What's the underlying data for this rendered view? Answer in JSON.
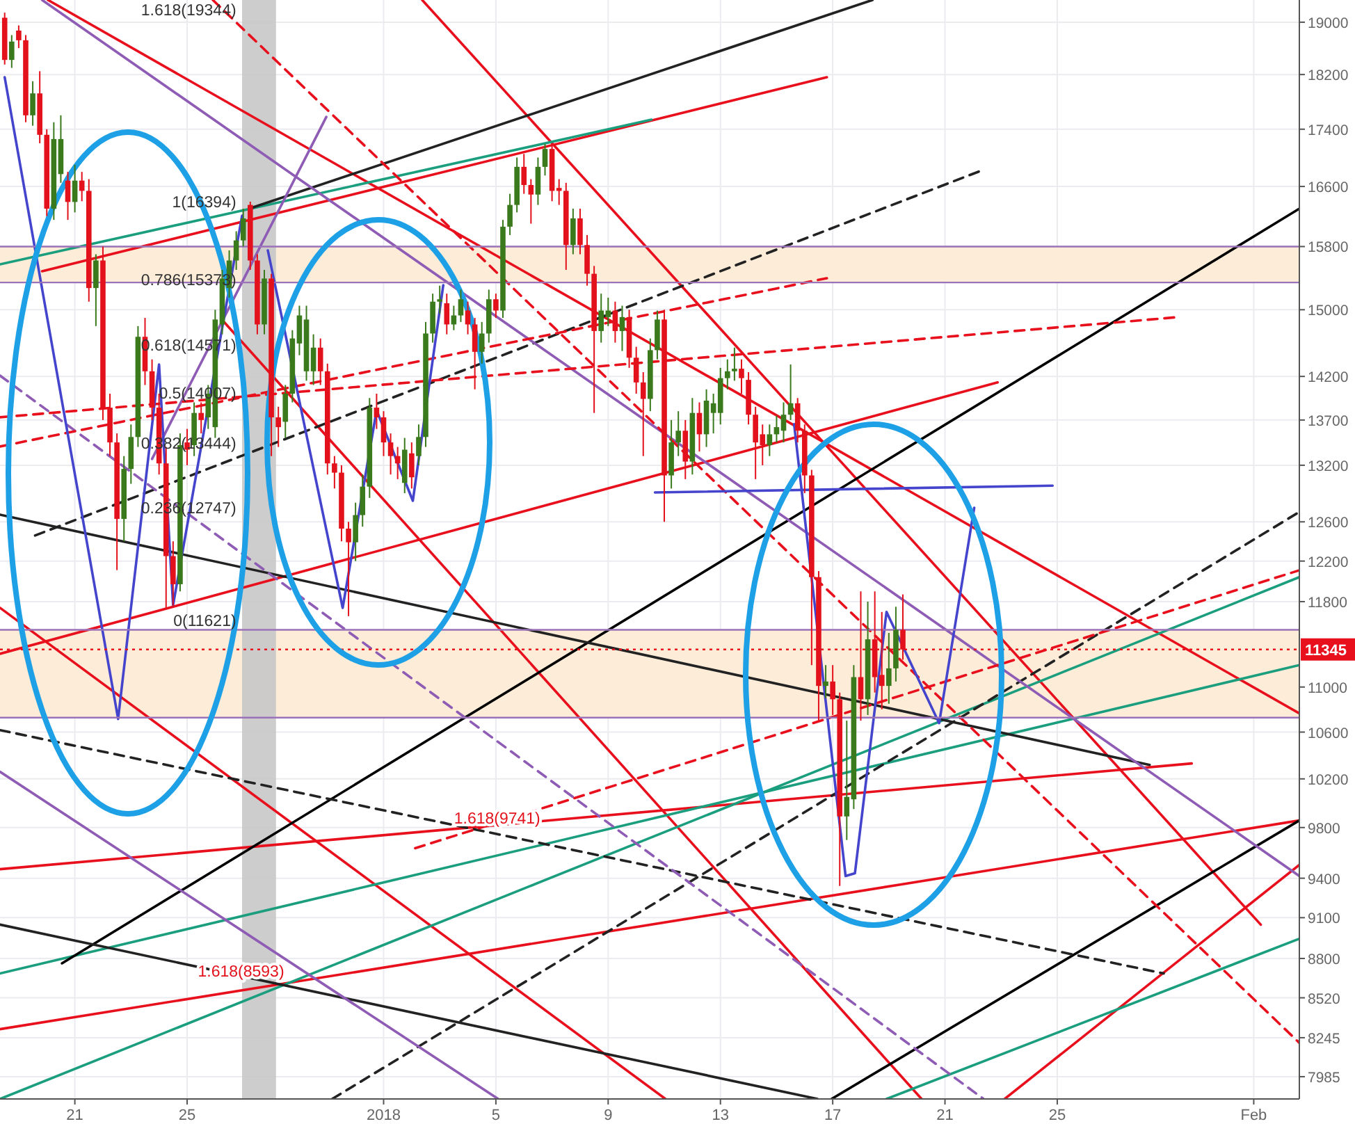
{
  "chart_data": {
    "type": "candlestick",
    "log": true,
    "grid": true,
    "xlim": [
      "2017-12-18T08:00",
      "2018-02-02T15:00"
    ],
    "xticks": [
      {
        "value": "2017-12-21",
        "label": "21"
      },
      {
        "value": "2017-12-25",
        "label": "25"
      },
      {
        "value": "2018-01-01",
        "label": "2018"
      },
      {
        "value": "2018-01-05",
        "label": "5"
      },
      {
        "value": "2018-01-09",
        "label": "9"
      },
      {
        "value": "2018-01-13",
        "label": "13"
      },
      {
        "value": "2018-01-17",
        "label": "17"
      },
      {
        "value": "2018-01-21",
        "label": "21"
      },
      {
        "value": "2018-01-25",
        "label": "25"
      },
      {
        "value": "2018-02-01",
        "label": "Feb"
      }
    ],
    "ylim": [
      7840,
      19350
    ],
    "yticks": [
      7985,
      8245,
      8520,
      8800,
      9100,
      9400,
      9800,
      10200,
      10600,
      11000,
      11800,
      12200,
      12600,
      13200,
      13700,
      14200,
      15000,
      15800,
      16600,
      17400,
      18200,
      19000
    ],
    "x": [
      "2017-12-18T12:00",
      "2017-12-18T18:00",
      "2017-12-19T00:00",
      "2017-12-19T06:00",
      "2017-12-19T12:00",
      "2017-12-19T18:00",
      "2017-12-20T00:00",
      "2017-12-20T06:00",
      "2017-12-20T12:00",
      "2017-12-20T18:00",
      "2017-12-21T00:00",
      "2017-12-21T06:00",
      "2017-12-21T12:00",
      "2017-12-21T18:00",
      "2017-12-22T00:00",
      "2017-12-22T06:00",
      "2017-12-22T12:00",
      "2017-12-22T18:00",
      "2017-12-23T00:00",
      "2017-12-23T06:00",
      "2017-12-23T12:00",
      "2017-12-23T18:00",
      "2017-12-24T00:00",
      "2017-12-24T06:00",
      "2017-12-24T12:00",
      "2017-12-24T18:00",
      "2017-12-25T00:00",
      "2017-12-25T06:00",
      "2017-12-25T12:00",
      "2017-12-25T18:00",
      "2017-12-26T00:00",
      "2017-12-26T06:00",
      "2017-12-26T12:00",
      "2017-12-26T18:00",
      "2017-12-27T00:00",
      "2017-12-27T06:00",
      "2017-12-27T12:00",
      "2017-12-27T18:00",
      "2017-12-28T00:00",
      "2017-12-28T06:00",
      "2017-12-28T12:00",
      "2017-12-28T18:00",
      "2017-12-29T00:00",
      "2017-12-29T06:00",
      "2017-12-29T12:00",
      "2017-12-29T18:00",
      "2017-12-30T00:00",
      "2017-12-30T06:00",
      "2017-12-30T12:00",
      "2017-12-30T18:00",
      "2017-12-31T00:00",
      "2017-12-31T06:00",
      "2017-12-31T12:00",
      "2017-12-31T18:00",
      "2018-01-01T00:00",
      "2018-01-01T06:00",
      "2018-01-01T12:00",
      "2018-01-01T18:00",
      "2018-01-02T00:00",
      "2018-01-02T06:00",
      "2018-01-02T12:00",
      "2018-01-02T18:00",
      "2018-01-03T00:00",
      "2018-01-03T06:00",
      "2018-01-03T12:00",
      "2018-01-03T18:00",
      "2018-01-04T00:00",
      "2018-01-04T06:00",
      "2018-01-04T12:00",
      "2018-01-04T18:00",
      "2018-01-05T00:00",
      "2018-01-05T06:00",
      "2018-01-05T12:00",
      "2018-01-05T18:00",
      "2018-01-06T00:00",
      "2018-01-06T06:00",
      "2018-01-06T12:00",
      "2018-01-06T18:00",
      "2018-01-07T00:00",
      "2018-01-07T06:00",
      "2018-01-07T12:00",
      "2018-01-07T18:00",
      "2018-01-08T00:00",
      "2018-01-08T06:00",
      "2018-01-08T12:00",
      "2018-01-08T18:00",
      "2018-01-09T00:00",
      "2018-01-09T06:00",
      "2018-01-09T12:00",
      "2018-01-09T18:00",
      "2018-01-10T00:00",
      "2018-01-10T06:00",
      "2018-01-10T12:00",
      "2018-01-10T18:00",
      "2018-01-11T00:00",
      "2018-01-11T06:00",
      "2018-01-11T12:00",
      "2018-01-11T18:00",
      "2018-01-12T00:00",
      "2018-01-12T06:00",
      "2018-01-12T12:00",
      "2018-01-12T18:00",
      "2018-01-13T00:00",
      "2018-01-13T06:00",
      "2018-01-13T12:00",
      "2018-01-13T18:00",
      "2018-01-14T00:00",
      "2018-01-14T06:00",
      "2018-01-14T12:00",
      "2018-01-14T18:00",
      "2018-01-15T00:00",
      "2018-01-15T06:00",
      "2018-01-15T12:00",
      "2018-01-15T18:00",
      "2018-01-16T00:00",
      "2018-01-16T06:00",
      "2018-01-16T12:00",
      "2018-01-16T18:00",
      "2018-01-17T00:00",
      "2018-01-17T06:00",
      "2018-01-17T12:00",
      "2018-01-17T18:00",
      "2018-01-18T00:00",
      "2018-01-18T06:00",
      "2018-01-18T12:00",
      "2018-01-18T18:00",
      "2018-01-19T00:00",
      "2018-01-19T06:00",
      "2018-01-19T12:00"
    ],
    "ohlc": [
      [
        19070,
        19150,
        18350,
        18420
      ],
      [
        18420,
        18800,
        18300,
        18700
      ],
      [
        18870,
        18950,
        18600,
        18720
      ],
      [
        18720,
        18800,
        17500,
        17600
      ],
      [
        17600,
        18100,
        17450,
        17920
      ],
      [
        17920,
        18250,
        17200,
        17320
      ],
      [
        17320,
        17400,
        16200,
        16300
      ],
      [
        16300,
        17500,
        16150,
        17260
      ],
      [
        16770,
        17600,
        16650,
        17260
      ],
      [
        16680,
        16800,
        16150,
        16390
      ],
      [
        16390,
        16900,
        16250,
        16680
      ],
      [
        16680,
        16800,
        16400,
        16540
      ],
      [
        16540,
        16700,
        15100,
        15270
      ],
      [
        15270,
        15700,
        14800,
        15620
      ],
      [
        15620,
        15800,
        13700,
        13840
      ],
      [
        13840,
        14000,
        13300,
        13450
      ],
      [
        13450,
        13550,
        12110,
        12630
      ],
      [
        12630,
        13300,
        12400,
        13160
      ],
      [
        13160,
        13650,
        13000,
        13510
      ],
      [
        13510,
        14800,
        13400,
        14670
      ],
      [
        14670,
        14900,
        14100,
        14260
      ],
      [
        14260,
        14400,
        13700,
        13840
      ],
      [
        13840,
        14000,
        13100,
        13220
      ],
      [
        13220,
        13400,
        11740,
        12250
      ],
      [
        12250,
        12400,
        11740,
        11970
      ],
      [
        11970,
        13550,
        11900,
        13420
      ],
      [
        13450,
        13600,
        13200,
        13370
      ],
      [
        13420,
        13900,
        13300,
        13780
      ],
      [
        13780,
        13900,
        13550,
        13700
      ],
      [
        13730,
        14100,
        13600,
        14000
      ],
      [
        13620,
        15000,
        13500,
        14880
      ],
      [
        14820,
        15500,
        14700,
        15390
      ],
      [
        15270,
        15750,
        15150,
        15620
      ],
      [
        15620,
        16000,
        15500,
        15880
      ],
      [
        15880,
        16300,
        15800,
        16170
      ],
      [
        16350,
        16394,
        15500,
        15620
      ],
      [
        15620,
        15700,
        14700,
        14820
      ],
      [
        14820,
        15500,
        14700,
        15390
      ],
      [
        15390,
        15450,
        13300,
        13730
      ],
      [
        13730,
        13850,
        13400,
        13620
      ],
      [
        13680,
        14100,
        13500,
        14000
      ],
      [
        14000,
        14750,
        13900,
        14650
      ],
      [
        14590,
        15050,
        14450,
        14930
      ],
      [
        14260,
        15050,
        14150,
        14880
      ],
      [
        14260,
        14700,
        14100,
        14540
      ],
      [
        14540,
        14650,
        14100,
        14260
      ],
      [
        14260,
        14350,
        13100,
        13220
      ],
      [
        13220,
        13300,
        12950,
        13120
      ],
      [
        13120,
        13200,
        12400,
        12530
      ],
      [
        12530,
        12600,
        11660,
        12390
      ],
      [
        12390,
        12800,
        12200,
        12670
      ],
      [
        12670,
        13100,
        12550,
        12970
      ],
      [
        12970,
        13950,
        12850,
        13840
      ],
      [
        13840,
        14000,
        13600,
        13730
      ],
      [
        13730,
        13800,
        13300,
        13450
      ],
      [
        13450,
        13550,
        13100,
        13300
      ],
      [
        13300,
        13400,
        13050,
        13220
      ],
      [
        13010,
        13500,
        12900,
        13370
      ],
      [
        13330,
        13450,
        12950,
        13070
      ],
      [
        13300,
        13650,
        13200,
        13510
      ],
      [
        13510,
        14850,
        13400,
        14710
      ],
      [
        14710,
        15200,
        14600,
        15100
      ],
      [
        15100,
        15300,
        14950,
        15130
      ],
      [
        15080,
        15200,
        14700,
        14820
      ],
      [
        14820,
        15050,
        14750,
        14930
      ],
      [
        14930,
        15250,
        14850,
        15130
      ],
      [
        14990,
        15100,
        14700,
        14820
      ],
      [
        14820,
        14900,
        14050,
        14490
      ],
      [
        14490,
        14850,
        14350,
        14710
      ],
      [
        14710,
        15250,
        14600,
        15130
      ],
      [
        15130,
        15200,
        14900,
        14990
      ],
      [
        14990,
        16150,
        14900,
        16060
      ],
      [
        16060,
        16500,
        15950,
        16350
      ],
      [
        16350,
        17000,
        16250,
        16870
      ],
      [
        16870,
        17050,
        16500,
        16620
      ],
      [
        16620,
        16700,
        16100,
        16490
      ],
      [
        16490,
        17000,
        16350,
        16870
      ],
      [
        16870,
        17190,
        16750,
        17120
      ],
      [
        17120,
        17200,
        16400,
        16540
      ],
      [
        16580,
        16700,
        16350,
        16540
      ],
      [
        16540,
        16650,
        15500,
        15820
      ],
      [
        15820,
        16300,
        15700,
        16170
      ],
      [
        16170,
        16300,
        15700,
        15820
      ],
      [
        15820,
        15950,
        15300,
        15450
      ],
      [
        15450,
        15550,
        13780,
        14740
      ],
      [
        14740,
        15200,
        14600,
        14990
      ],
      [
        14910,
        15150,
        14800,
        14990
      ],
      [
        14990,
        15100,
        14600,
        14740
      ],
      [
        14740,
        15050,
        14500,
        14910
      ],
      [
        14910,
        15000,
        14300,
        14420
      ],
      [
        14420,
        14550,
        14000,
        14130
      ],
      [
        14130,
        14250,
        13300,
        13940
      ],
      [
        13940,
        14650,
        13800,
        14510
      ],
      [
        14510,
        14990,
        14400,
        14880
      ],
      [
        14880,
        15000,
        12600,
        13090
      ],
      [
        13090,
        13700,
        12950,
        13450
      ],
      [
        13450,
        13800,
        13300,
        13580
      ],
      [
        13580,
        13700,
        13050,
        13240
      ],
      [
        13240,
        13950,
        13100,
        13780
      ],
      [
        13780,
        13900,
        13350,
        13540
      ],
      [
        13540,
        14050,
        13400,
        13920
      ],
      [
        13780,
        14000,
        13550,
        13890
      ],
      [
        13780,
        14300,
        13650,
        14180
      ],
      [
        14180,
        14400,
        14050,
        14260
      ],
      [
        14260,
        14540,
        14150,
        14290
      ],
      [
        14290,
        14400,
        14000,
        14180
      ],
      [
        14160,
        14250,
        13650,
        13760
      ],
      [
        13760,
        13850,
        13050,
        13450
      ],
      [
        13540,
        13650,
        13200,
        13420
      ],
      [
        13420,
        13650,
        13300,
        13540
      ],
      [
        13540,
        13750,
        13450,
        13620
      ],
      [
        13580,
        13900,
        13450,
        13760
      ],
      [
        13760,
        14340,
        13700,
        13890
      ],
      [
        13890,
        13950,
        13450,
        13580
      ],
      [
        13580,
        13650,
        12900,
        13090
      ],
      [
        13090,
        13150,
        11200,
        12040
      ],
      [
        12040,
        12100,
        10700,
        11010
      ],
      [
        11010,
        11200,
        10900,
        11050
      ],
      [
        11050,
        11200,
        10750,
        10890
      ],
      [
        10890,
        10950,
        9340,
        9890
      ],
      [
        9890,
        10700,
        9700,
        10050
      ],
      [
        10030,
        11200,
        9950,
        11090
      ],
      [
        11090,
        11900,
        10700,
        10890
      ],
      [
        10890,
        11800,
        10750,
        11440
      ],
      [
        11440,
        11900,
        10950,
        11090
      ],
      [
        11110,
        11700,
        10800,
        11010
      ],
      [
        11010,
        11500,
        10850,
        11170
      ],
      [
        11170,
        11750,
        11050,
        11530
      ],
      [
        11530,
        11870,
        11250,
        11345
      ]
    ],
    "bands": [
      {
        "axis": "y",
        "from": 15340,
        "to": 15800,
        "color": "#fcecd8"
      },
      {
        "axis": "y",
        "from": 10727,
        "to": 11530,
        "color": "#fcecd8"
      },
      {
        "axis": "x",
        "from": "2017-12-26T23:00",
        "to": "2017-12-28T04:00",
        "color": "#c8c8c8"
      }
    ],
    "ref_lines": [
      {
        "axis": "y",
        "value": 11345,
        "label": "11345",
        "color": "#e8101d",
        "line_style": "dotted"
      },
      {
        "axis": "y",
        "value": 15800,
        "color": "#9b72b8"
      },
      {
        "axis": "y",
        "value": 15340,
        "color": "#9b72b8"
      },
      {
        "axis": "y",
        "value": 11530,
        "color": "#9b72b8"
      },
      {
        "axis": "y",
        "value": 10727,
        "color": "#9b72b8"
      }
    ],
    "annotations": [
      {
        "text": "1.618(19344)",
        "x": "2017-12-26T18:00",
        "y": 19344
      },
      {
        "text": "1(16394)",
        "x": "2017-12-26T18:00",
        "y": 16394
      },
      {
        "text": "0.786(15373)",
        "x": "2017-12-26T18:00",
        "y": 15373
      },
      {
        "text": "0.618(14571)",
        "x": "2017-12-26T18:00",
        "y": 14571
      },
      {
        "text": "0.5(14007)",
        "x": "2017-12-26T18:00",
        "y": 14007
      },
      {
        "text": "0.382(13444)",
        "x": "2017-12-26T18:00",
        "y": 13444
      },
      {
        "text": "0.236(12747)",
        "x": "2017-12-26T18:00",
        "y": 12747
      },
      {
        "text": "0(11621)",
        "x": "2017-12-26T18:00",
        "y": 11621
      },
      {
        "text": "1.618(9741)",
        "x": "2018-01-06T14:00",
        "y": 9741
      },
      {
        "text": "1.618(8593)",
        "x": "2017-12-28T11:00",
        "y": 8593
      }
    ],
    "series": [
      {
        "type": "line",
        "color": "#e8101d",
        "x": [
          "2017-12-20T01:00",
          "2018-02-02T15:00"
        ],
        "values": [
          19350,
          10764
        ]
      },
      {
        "type": "line",
        "color": "#e8101d",
        "x": [
          "2018-01-02T09:00",
          "2018-02-01T06:00"
        ],
        "values": [
          19350,
          9048
        ]
      },
      {
        "type": "line",
        "color": "#e8101d",
        "x": [
          "2017-12-26T06:00",
          "2018-01-20T04:00"
        ],
        "values": [
          14875,
          7840
        ]
      },
      {
        "type": "line",
        "color": "#e8101d",
        "x": [
          "2017-12-18T08:00",
          "2018-01-11T01:00"
        ],
        "values": [
          11740,
          7840
        ]
      },
      {
        "type": "line",
        "color": "#e8101d",
        "x": [
          "2017-12-18T08:00",
          "2018-01-29T19:00"
        ],
        "values": [
          9470,
          10330
        ]
      },
      {
        "type": "line",
        "color": "#e8101d",
        "x": [
          "2017-12-18T08:00",
          "2018-02-02T15:00"
        ],
        "values": [
          8303,
          9857
        ]
      },
      {
        "type": "line",
        "color": "#e8101d",
        "x": [
          "2018-01-23T03:00",
          "2018-02-02T15:00"
        ],
        "values": [
          7840,
          9504
        ]
      },
      {
        "type": "line",
        "color": "#e8101d",
        "x": [
          "2017-12-18T08:00",
          "2018-01-22T21:00"
        ],
        "values": [
          11305,
          14130
        ]
      },
      {
        "type": "line",
        "color": "#e8101d",
        "x": [
          "2017-12-19T20:00",
          "2018-01-16T19:00"
        ],
        "values": [
          15483,
          18160
        ]
      },
      {
        "type": "line",
        "color": "#1a9e7e",
        "x": [
          "2017-12-18T08:00",
          "2018-01-10T13:00"
        ],
        "values": [
          15571,
          17537
        ]
      },
      {
        "type": "line",
        "color": "#1a9e7e",
        "x": [
          "2017-12-18T08:00",
          "2018-02-02T15:00"
        ],
        "values": [
          7840,
          12040
        ]
      },
      {
        "type": "line",
        "color": "#1a9e7e",
        "x": [
          "2017-12-18T08:00",
          "2018-02-02T15:00"
        ],
        "values": [
          8692,
          11200
        ]
      },
      {
        "type": "line",
        "color": "#1a9e7e",
        "x": [
          "2018-01-18T22:00",
          "2018-02-02T15:00"
        ],
        "values": [
          7840,
          8944
        ]
      },
      {
        "type": "line",
        "color": "#222222",
        "x": [
          "2017-12-27T05:00",
          "2018-01-18T10:00"
        ],
        "values": [
          16300,
          19350
        ]
      },
      {
        "type": "line",
        "color": "#000000",
        "x": [
          "2017-12-20T13:00",
          "2018-02-02T15:00"
        ],
        "values": [
          8765,
          16300
        ]
      },
      {
        "type": "line",
        "color": "#000000",
        "x": [
          "2018-01-16T23:00",
          "2018-02-02T15:00"
        ],
        "values": [
          7840,
          9857
        ]
      },
      {
        "type": "line",
        "color": "#222222",
        "x": [
          "2017-12-18T08:00",
          "2018-01-28T07:00"
        ],
        "values": [
          12674,
          10318
        ]
      },
      {
        "type": "line",
        "color": "#222222",
        "x": [
          "2017-12-18T08:00",
          "2018-01-16T11:00"
        ],
        "values": [
          9048,
          7840
        ]
      },
      {
        "type": "line",
        "color": "#222222",
        "line_style": "dashed",
        "x": [
          "2017-12-19T14:00",
          "2018-01-22T09:00"
        ],
        "values": [
          12459,
          16830
        ]
      },
      {
        "type": "line",
        "color": "#222222",
        "line_style": "dashed",
        "x": [
          "2017-12-18T08:00",
          "2018-01-28T19:00"
        ],
        "values": [
          10617,
          8692
        ]
      },
      {
        "type": "line",
        "color": "#222222",
        "line_style": "dashed",
        "x": [
          "2017-12-30T04:00",
          "2018-02-02T15:00"
        ],
        "values": [
          7840,
          12703
        ]
      },
      {
        "type": "line",
        "color": "#8e5bb5",
        "x": [
          "2017-12-19T20:00",
          "2018-02-02T15:00"
        ],
        "values": [
          19350,
          9417
        ]
      },
      {
        "type": "line",
        "color": "#8e5bb5",
        "x": [
          "2017-12-18T08:00",
          "2018-01-05T02:00"
        ],
        "values": [
          10260,
          7840
        ]
      },
      {
        "type": "line",
        "color": "#8e5bb5",
        "x": [
          "2017-12-23T18:00",
          "2017-12-29T23:00"
        ],
        "values": [
          13268,
          17577
        ]
      },
      {
        "type": "line",
        "color": "#8e5bb5",
        "line_style": "dashed",
        "x": [
          "2017-12-18T08:00",
          "2018-01-22T09:00"
        ],
        "values": [
          14210,
          7840
        ]
      },
      {
        "type": "line",
        "color": "#e8101d",
        "line_style": "dashed",
        "x": [
          "2017-12-18T08:00",
          "2018-01-29T07:00"
        ],
        "values": [
          13731,
          14909
        ]
      },
      {
        "type": "line",
        "color": "#e8101d",
        "line_style": "dashed",
        "x": [
          "2017-12-25T22:00",
          "2018-02-02T15:00"
        ],
        "values": [
          19350,
          8210
        ]
      },
      {
        "type": "line",
        "color": "#e8101d",
        "line_style": "dashed",
        "x": [
          "2017-12-18T08:00",
          "2018-01-16T19:00"
        ],
        "values": [
          13405,
          15394
        ]
      },
      {
        "type": "line",
        "color": "#e8101d",
        "line_style": "dashed",
        "x": [
          "2018-01-02T03:00",
          "2018-02-02T15:00"
        ],
        "values": [
          9635,
          12108
        ]
      },
      {
        "type": "line",
        "color": "#4444cc",
        "x": [
          "2017-12-18T12:00",
          "2017-12-22T13:00",
          "2017-12-24T00:00",
          "2017-12-24T12:00",
          "2017-12-26T23:00"
        ],
        "values": [
          18160,
          10715,
          14340,
          11767,
          16207
        ]
      },
      {
        "type": "line",
        "color": "#4444cc",
        "x": [
          "2017-12-27T21:00",
          "2017-12-30T13:00",
          "2017-12-31T18:00",
          "2018-01-02T01:00",
          "2018-01-03T03:00"
        ],
        "values": [
          15750,
          11740,
          13810,
          12820,
          15306
        ]
      },
      {
        "type": "line",
        "color": "#4444cc",
        "x": [
          "2018-01-15T15:00",
          "2018-01-17T11:00",
          "2018-01-17T19:00",
          "2018-01-18T22:00",
          "2018-01-20T19:00",
          "2018-01-22T01:00"
        ],
        "values": [
          13653,
          9417,
          9438,
          11700,
          10678,
          12747
        ]
      },
      {
        "type": "line",
        "color": "#4444cc",
        "x": [
          "2018-01-10T16:00",
          "2018-01-24T20:00"
        ],
        "values": [
          12908,
          12980
        ]
      }
    ]
  }
}
